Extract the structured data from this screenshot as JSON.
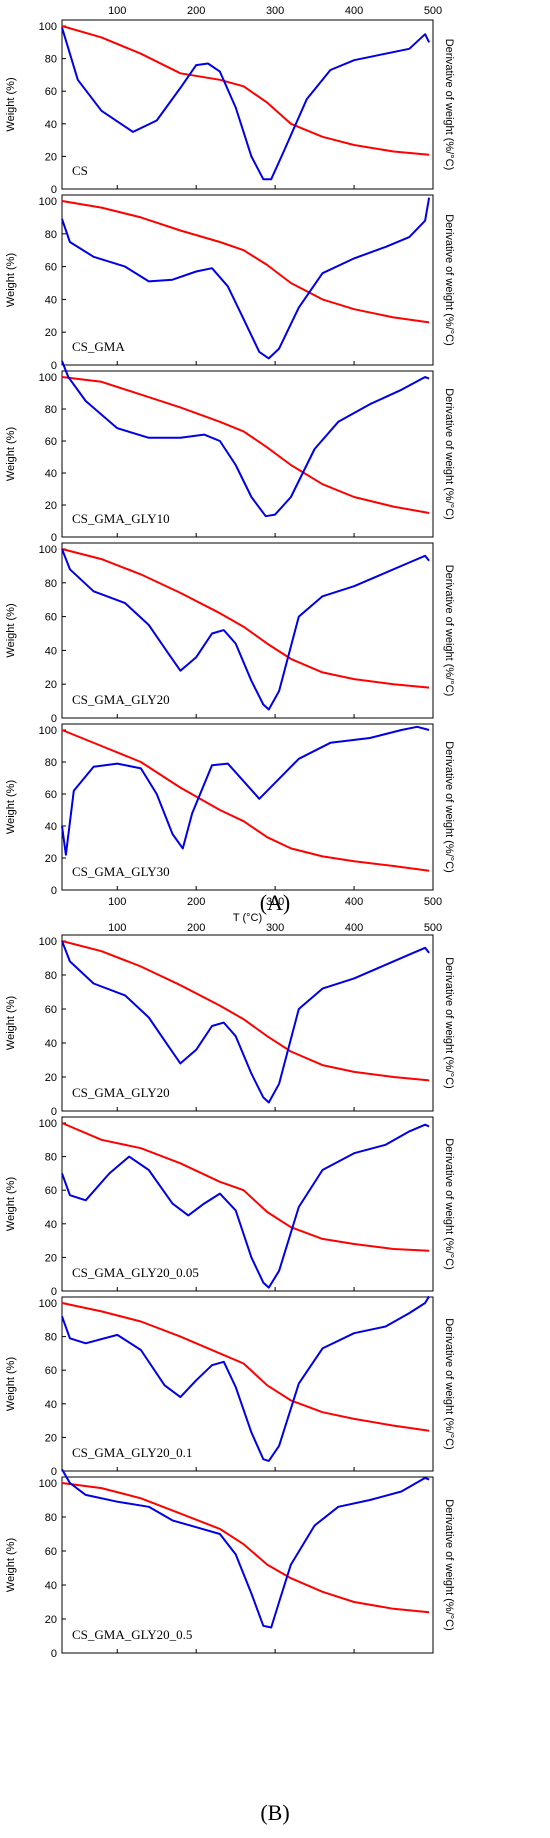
{
  "figure": {
    "label_A": "(A)",
    "label_B": "(B)",
    "label_A_bold": "A",
    "label_B_bold": "B"
  },
  "colors": {
    "weight": "#ff0000",
    "derivative": "#0000e6",
    "axis": "#000000"
  },
  "chart_data": [
    {
      "type": "line",
      "title": "CS",
      "ylabel": "Weight (%)",
      "y2label": "Derivative of weight (%/°C)",
      "xlim": [
        30,
        500
      ],
      "ylim": [
        0,
        100
      ],
      "xticks": [
        100,
        200,
        300,
        400,
        500
      ],
      "yticks": [
        0,
        20,
        40,
        60,
        80,
        100
      ],
      "series": [
        {
          "role": "weight",
          "x": [
            30,
            80,
            130,
            180,
            230,
            260,
            290,
            320,
            360,
            400,
            450,
            495
          ],
          "values": [
            100,
            93,
            83,
            71,
            67,
            63,
            53,
            40,
            32,
            27,
            23,
            21
          ]
        },
        {
          "role": "derivative",
          "x": [
            30,
            50,
            80,
            120,
            150,
            180,
            200,
            215,
            230,
            250,
            270,
            285,
            295,
            310,
            340,
            370,
            400,
            430,
            470,
            490,
            495
          ],
          "values": [
            99,
            67,
            48,
            35,
            42,
            62,
            76,
            77,
            72,
            50,
            20,
            6,
            6,
            22,
            55,
            73,
            79,
            82,
            86,
            95,
            90
          ]
        }
      ]
    },
    {
      "type": "line",
      "title": "CS_GMA",
      "ylabel": "Weight (%)",
      "y2label": "Derivative of weight (%/°C)",
      "xlim": [
        30,
        500
      ],
      "ylim": [
        0,
        100
      ],
      "xticks": [
        100,
        200,
        300,
        400,
        500
      ],
      "yticks": [
        0,
        20,
        40,
        60,
        80,
        100
      ],
      "series": [
        {
          "role": "weight",
          "x": [
            30,
            80,
            130,
            180,
            230,
            260,
            290,
            320,
            360,
            400,
            450,
            495
          ],
          "values": [
            100,
            96,
            90,
            82,
            75,
            70,
            61,
            50,
            40,
            34,
            29,
            26
          ]
        },
        {
          "role": "derivative",
          "x": [
            30,
            40,
            70,
            110,
            140,
            170,
            200,
            220,
            240,
            260,
            280,
            292,
            305,
            330,
            360,
            400,
            440,
            470,
            490,
            495
          ],
          "values": [
            89,
            75,
            66,
            60,
            51,
            52,
            57,
            59,
            48,
            28,
            8,
            4,
            10,
            35,
            56,
            65,
            72,
            78,
            88,
            102
          ]
        }
      ]
    },
    {
      "type": "line",
      "title": "CS_GMA_GLY10",
      "ylabel": "Weight (%)",
      "y2label": "Derivative of weight (%/°C)",
      "xlim": [
        30,
        500
      ],
      "ylim": [
        0,
        100
      ],
      "xticks": [
        100,
        200,
        300,
        400,
        500
      ],
      "yticks": [
        0,
        20,
        40,
        60,
        80,
        100
      ],
      "series": [
        {
          "role": "weight",
          "x": [
            30,
            80,
            130,
            180,
            230,
            260,
            290,
            320,
            360,
            400,
            450,
            495
          ],
          "values": [
            100,
            97,
            89,
            81,
            72,
            66,
            56,
            45,
            33,
            25,
            19,
            15
          ]
        },
        {
          "role": "derivative",
          "x": [
            30,
            38,
            60,
            100,
            140,
            180,
            210,
            230,
            250,
            270,
            288,
            300,
            320,
            350,
            380,
            420,
            460,
            490,
            495
          ],
          "values": [
            110,
            100,
            85,
            68,
            62,
            62,
            64,
            60,
            45,
            25,
            13,
            14,
            25,
            55,
            72,
            83,
            92,
            100,
            99
          ]
        }
      ]
    },
    {
      "type": "line",
      "title": "CS_GMA_GLY20",
      "ylabel": "Weight (%)",
      "y2label": "Derivative of weight (%/°C)",
      "xlim": [
        30,
        500
      ],
      "ylim": [
        0,
        100
      ],
      "xticks": [
        100,
        200,
        300,
        400,
        500
      ],
      "yticks": [
        0,
        20,
        40,
        60,
        80,
        100
      ],
      "series": [
        {
          "role": "weight",
          "x": [
            30,
            80,
            130,
            180,
            230,
            260,
            290,
            320,
            360,
            400,
            450,
            495
          ],
          "values": [
            100,
            94,
            85,
            74,
            62,
            54,
            44,
            35,
            27,
            23,
            20,
            18
          ]
        },
        {
          "role": "derivative",
          "x": [
            30,
            40,
            70,
            110,
            140,
            165,
            180,
            200,
            220,
            235,
            250,
            270,
            285,
            292,
            305,
            330,
            360,
            400,
            440,
            470,
            490,
            495
          ],
          "values": [
            100,
            88,
            75,
            68,
            55,
            38,
            28,
            36,
            50,
            52,
            44,
            22,
            8,
            5,
            16,
            60,
            72,
            78,
            86,
            92,
            96,
            93
          ]
        }
      ]
    },
    {
      "type": "line",
      "title": "CS_GMA_GLY30",
      "xlabel": "T (°C)",
      "ylabel": "Weight (%)",
      "y2label": "Derivative of weight (%/°C)",
      "xlim": [
        30,
        500
      ],
      "ylim": [
        0,
        100
      ],
      "xticks": [
        100,
        200,
        300,
        400,
        500
      ],
      "yticks": [
        0,
        20,
        40,
        60,
        80,
        100
      ],
      "series": [
        {
          "role": "weight",
          "x": [
            30,
            80,
            130,
            180,
            230,
            260,
            290,
            320,
            360,
            400,
            450,
            495
          ],
          "values": [
            100,
            90,
            80,
            64,
            50,
            43,
            33,
            26,
            21,
            18,
            15,
            12
          ]
        },
        {
          "role": "derivative",
          "x": [
            30,
            35,
            45,
            70,
            100,
            130,
            150,
            170,
            183,
            195,
            220,
            240,
            260,
            280,
            300,
            330,
            370,
            420,
            460,
            480,
            495
          ],
          "values": [
            40,
            22,
            62,
            77,
            79,
            76,
            60,
            35,
            26,
            48,
            78,
            79,
            68,
            57,
            67,
            82,
            92,
            95,
            100,
            102,
            100
          ]
        }
      ]
    },
    {
      "type": "line",
      "title": "CS_GMA_GLY20",
      "ylabel": "Weight (%)",
      "y2label": "Derivative of weight (%/°C)",
      "xlim": [
        30,
        500
      ],
      "ylim": [
        0,
        100
      ],
      "xticks": [
        100,
        200,
        300,
        400,
        500
      ],
      "yticks": [
        0,
        20,
        40,
        60,
        80,
        100
      ],
      "series": [
        {
          "role": "weight",
          "x": [
            30,
            80,
            130,
            180,
            230,
            260,
            290,
            320,
            360,
            400,
            450,
            495
          ],
          "values": [
            100,
            94,
            85,
            74,
            62,
            54,
            44,
            35,
            27,
            23,
            20,
            18
          ]
        },
        {
          "role": "derivative",
          "x": [
            30,
            40,
            70,
            110,
            140,
            165,
            180,
            200,
            220,
            235,
            250,
            270,
            285,
            292,
            305,
            330,
            360,
            400,
            440,
            470,
            490,
            495
          ],
          "values": [
            100,
            88,
            75,
            68,
            55,
            38,
            28,
            36,
            50,
            52,
            44,
            22,
            8,
            5,
            16,
            60,
            72,
            78,
            86,
            92,
            96,
            93
          ]
        }
      ]
    },
    {
      "type": "line",
      "title": "CS_GMA_GLY20_0.05",
      "ylabel": "Weight (%)",
      "y2label": "Derivative of weight (%/°C)",
      "xlim": [
        30,
        500
      ],
      "ylim": [
        0,
        100
      ],
      "xticks": [
        100,
        200,
        300,
        400,
        500
      ],
      "yticks": [
        0,
        20,
        40,
        60,
        80,
        100
      ],
      "series": [
        {
          "role": "weight",
          "x": [
            30,
            80,
            130,
            180,
            230,
            260,
            290,
            320,
            360,
            400,
            450,
            495
          ],
          "values": [
            100,
            90,
            85,
            76,
            65,
            60,
            47,
            38,
            31,
            28,
            25,
            24
          ]
        },
        {
          "role": "derivative",
          "x": [
            30,
            40,
            60,
            90,
            115,
            140,
            170,
            190,
            210,
            230,
            250,
            270,
            285,
            292,
            305,
            330,
            360,
            400,
            440,
            470,
            490,
            495
          ],
          "values": [
            70,
            57,
            54,
            70,
            80,
            72,
            52,
            45,
            52,
            58,
            48,
            20,
            5,
            2,
            12,
            50,
            72,
            82,
            87,
            95,
            99,
            98
          ]
        }
      ]
    },
    {
      "type": "line",
      "title": "CS_GMA_GLY20_0.1",
      "ylabel": "Weight (%)",
      "y2label": "Derivative of weight (%/°C)",
      "xlim": [
        30,
        500
      ],
      "ylim": [
        0,
        100
      ],
      "xticks": [
        100,
        200,
        300,
        400,
        500
      ],
      "yticks": [
        0,
        20,
        40,
        60,
        80,
        100
      ],
      "series": [
        {
          "role": "weight",
          "x": [
            30,
            80,
            130,
            180,
            230,
            260,
            290,
            320,
            360,
            400,
            450,
            495
          ],
          "values": [
            100,
            95,
            89,
            80,
            70,
            64,
            51,
            42,
            35,
            31,
            27,
            24
          ]
        },
        {
          "role": "derivative",
          "x": [
            30,
            40,
            60,
            100,
            130,
            160,
            180,
            200,
            220,
            235,
            250,
            270,
            285,
            292,
            305,
            330,
            360,
            400,
            440,
            470,
            490,
            495
          ],
          "values": [
            92,
            79,
            76,
            81,
            72,
            51,
            44,
            54,
            63,
            65,
            50,
            23,
            7,
            6,
            15,
            52,
            73,
            82,
            86,
            94,
            100,
            104
          ]
        }
      ]
    },
    {
      "type": "line",
      "title": "CS_GMA_GLY20_0.5",
      "ylabel": "Weight (%)",
      "y2label": "Derivative of weight (%/°C)",
      "xlim": [
        30,
        500
      ],
      "ylim": [
        0,
        100
      ],
      "xticks": [
        100,
        200,
        300,
        400,
        500
      ],
      "yticks": [
        0,
        20,
        40,
        60,
        80,
        100
      ],
      "series": [
        {
          "role": "weight",
          "x": [
            30,
            80,
            130,
            180,
            230,
            260,
            290,
            320,
            360,
            400,
            450,
            495
          ],
          "values": [
            100,
            97,
            91,
            82,
            73,
            64,
            52,
            44,
            36,
            30,
            26,
            24
          ]
        },
        {
          "role": "derivative",
          "x": [
            30,
            40,
            60,
            100,
            140,
            170,
            200,
            230,
            250,
            270,
            285,
            295,
            305,
            320,
            350,
            380,
            420,
            460,
            490,
            495
          ],
          "values": [
            108,
            100,
            93,
            89,
            86,
            78,
            74,
            70,
            58,
            35,
            16,
            15,
            30,
            52,
            75,
            86,
            90,
            95,
            103,
            102
          ]
        }
      ]
    }
  ]
}
